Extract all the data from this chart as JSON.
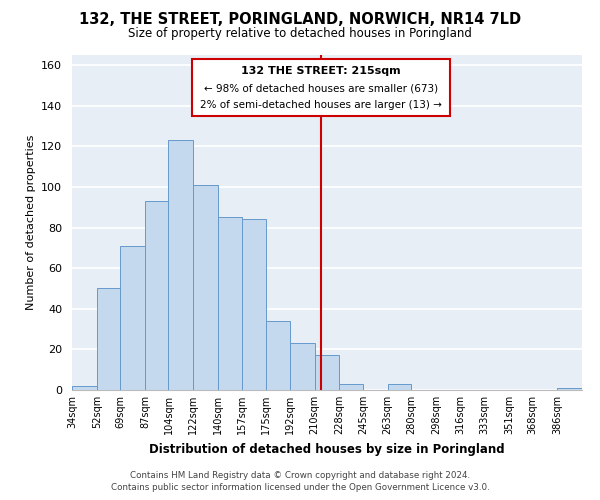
{
  "title": "132, THE STREET, PORINGLAND, NORWICH, NR14 7LD",
  "subtitle": "Size of property relative to detached houses in Poringland",
  "xlabel": "Distribution of detached houses by size in Poringland",
  "ylabel": "Number of detached properties",
  "bar_color": "#c5d9ee",
  "bar_edge_color": "#6699cc",
  "background_color": "#e8eef5",
  "bin_labels": [
    "34sqm",
    "52sqm",
    "69sqm",
    "87sqm",
    "104sqm",
    "122sqm",
    "140sqm",
    "157sqm",
    "175sqm",
    "192sqm",
    "210sqm",
    "228sqm",
    "245sqm",
    "263sqm",
    "280sqm",
    "298sqm",
    "316sqm",
    "333sqm",
    "351sqm",
    "368sqm",
    "386sqm"
  ],
  "bin_edges": [
    34,
    52,
    69,
    87,
    104,
    122,
    140,
    157,
    175,
    192,
    210,
    228,
    245,
    263,
    280,
    298,
    316,
    333,
    351,
    368,
    386
  ],
  "counts": [
    2,
    50,
    71,
    93,
    123,
    101,
    85,
    84,
    34,
    23,
    17,
    3,
    0,
    3,
    0,
    0,
    0,
    0,
    0,
    0,
    1
  ],
  "ref_line_x": 215,
  "ref_line_color": "#cc0000",
  "annotation_title": "132 THE STREET: 215sqm",
  "annotation_line1": "← 98% of detached houses are smaller (673)",
  "annotation_line2": "2% of semi-detached houses are larger (13) →",
  "ylim": [
    0,
    165
  ],
  "yticks": [
    0,
    20,
    40,
    60,
    80,
    100,
    120,
    140,
    160
  ],
  "footer_line1": "Contains HM Land Registry data © Crown copyright and database right 2024.",
  "footer_line2": "Contains public sector information licensed under the Open Government Licence v3.0."
}
